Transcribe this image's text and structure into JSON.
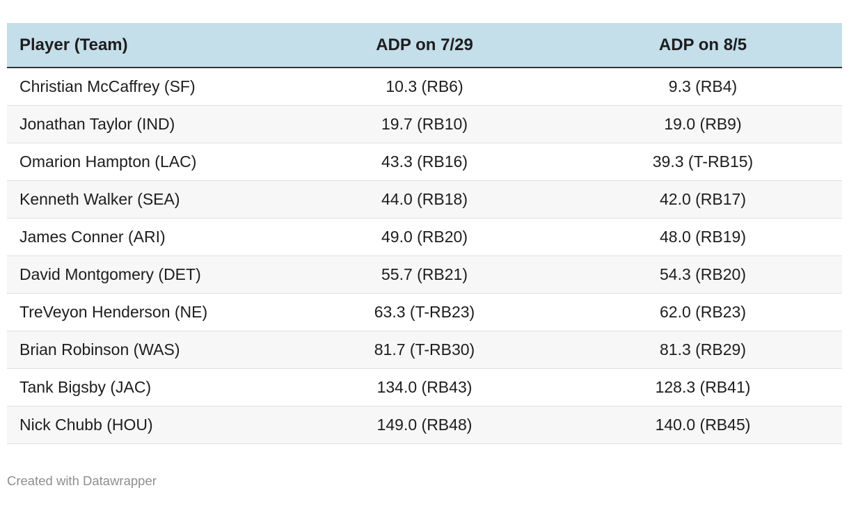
{
  "chart_data": {
    "type": "table",
    "columns": [
      "Player (Team)",
      "ADP on 7/29",
      "ADP on 8/5"
    ],
    "rows": [
      [
        "Christian McCaffrey (SF)",
        "10.3 (RB6)",
        "9.3 (RB4)"
      ],
      [
        "Jonathan Taylor (IND)",
        "19.7 (RB10)",
        "19.0 (RB9)"
      ],
      [
        "Omarion Hampton (LAC)",
        "43.3 (RB16)",
        "39.3 (T-RB15)"
      ],
      [
        "Kenneth Walker (SEA)",
        "44.0 (RB18)",
        "42.0 (RB17)"
      ],
      [
        "James Conner (ARI)",
        "49.0 (RB20)",
        "48.0 (RB19)"
      ],
      [
        "David Montgomery (DET)",
        "55.7 (RB21)",
        "54.3 (RB20)"
      ],
      [
        "TreVeyon Henderson (NE)",
        "63.3 (T-RB23)",
        "62.0 (RB23)"
      ],
      [
        "Brian Robinson (WAS)",
        "81.7 (T-RB30)",
        "81.3 (RB29)"
      ],
      [
        "Tank Bigsby (JAC)",
        "134.0 (RB43)",
        "128.3 (RB41)"
      ],
      [
        "Nick Chubb (HOU)",
        "149.0 (RB48)",
        "140.0 (RB45)"
      ]
    ],
    "layout": {
      "striped_rows": true,
      "header_align": [
        "left",
        "center",
        "center"
      ],
      "body_align": [
        "left",
        "center",
        "center"
      ]
    }
  },
  "footer": {
    "attribution": "Created with Datawrapper"
  },
  "colors": {
    "header_bg": "#c4deea",
    "header_border": "#333333",
    "stripe_bg": "#f7f7f7",
    "row_border": "#e0e0e0",
    "text": "#1d1d1d",
    "attribution_text": "#8e8e8e"
  }
}
